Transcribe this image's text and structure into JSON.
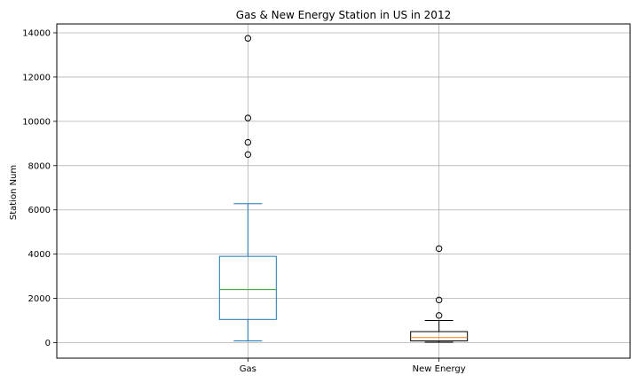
{
  "chart_data": {
    "type": "box",
    "title": "Gas & New Energy Station in US in 2012",
    "xlabel": "",
    "ylabel": "Station Num",
    "ylim": [
      -700,
      14400
    ],
    "yticks": [
      0,
      2000,
      4000,
      6000,
      8000,
      10000,
      12000,
      14000
    ],
    "grid": true,
    "categories": [
      "Gas",
      "New Energy"
    ],
    "series": [
      {
        "category": "Gas",
        "whisker_low": 80,
        "q1": 1050,
        "median": 2400,
        "q3": 3900,
        "whisker_high": 6280,
        "outliers": [
          8500,
          9050,
          10150,
          13750
        ],
        "box_color": "#1f77b4",
        "median_color": "#2ca02c"
      },
      {
        "category": "New Energy",
        "whisker_low": 20,
        "q1": 80,
        "median": 230,
        "q3": 500,
        "whisker_high": 1000,
        "outliers": [
          1230,
          1930,
          4250
        ],
        "box_color": "#000000",
        "median_color": "#ff7f0e"
      }
    ]
  }
}
